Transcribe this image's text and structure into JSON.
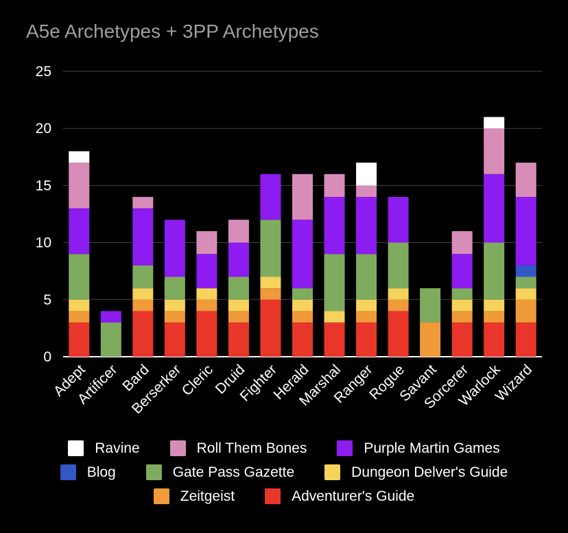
{
  "chart_data": {
    "type": "bar",
    "stacked": true,
    "title": "A5e Archetypes + 3PP Archetypes",
    "xlabel": "",
    "ylabel": "",
    "ylim": [
      0,
      25
    ],
    "yticks": [
      0,
      5,
      10,
      15,
      20,
      25
    ],
    "grid": true,
    "legend_position": "bottom",
    "categories": [
      "Adept",
      "Artificer",
      "Bard",
      "Berserker",
      "Cleric",
      "Druid",
      "Fighter",
      "Herald",
      "Marshal",
      "Ranger",
      "Rogue",
      "Savant",
      "Sorcerer",
      "Warlock",
      "Wizard"
    ],
    "series": [
      {
        "name": "Adventurer's Guide",
        "color": "#e8372a",
        "values": [
          3,
          0,
          4,
          3,
          4,
          3,
          5,
          3,
          3,
          3,
          4,
          0,
          3,
          3,
          3
        ]
      },
      {
        "name": "Zeitgeist",
        "color": "#f09a3a",
        "values": [
          1,
          0,
          1,
          1,
          1,
          1,
          1,
          1,
          0,
          1,
          1,
          3,
          1,
          1,
          2
        ]
      },
      {
        "name": "Dungeon Delver's Guide",
        "color": "#f6d35b",
        "values": [
          1,
          0,
          1,
          1,
          1,
          1,
          1,
          1,
          1,
          1,
          1,
          0,
          1,
          1,
          1
        ]
      },
      {
        "name": "Gate Pass Gazette",
        "color": "#7fab5f",
        "values": [
          4,
          3,
          2,
          2,
          0,
          2,
          5,
          1,
          5,
          4,
          4,
          3,
          1,
          5,
          1
        ]
      },
      {
        "name": "Blog",
        "color": "#3457c7",
        "values": [
          0,
          0,
          0,
          0,
          0,
          0,
          0,
          0,
          0,
          0,
          0,
          0,
          0,
          0,
          1
        ]
      },
      {
        "name": "Purple Martin Games",
        "color": "#8c1cf0",
        "values": [
          4,
          1,
          5,
          5,
          3,
          3,
          4,
          6,
          5,
          5,
          4,
          0,
          3,
          6,
          6
        ]
      },
      {
        "name": "Roll Them Bones",
        "color": "#d88db8",
        "values": [
          4,
          0,
          1,
          0,
          2,
          2,
          0,
          4,
          2,
          1,
          0,
          0,
          2,
          4,
          3
        ]
      },
      {
        "name": "Ravine",
        "color": "#ffffff",
        "values": [
          1,
          0,
          0,
          0,
          0,
          0,
          0,
          0,
          0,
          2,
          0,
          0,
          0,
          1,
          0
        ]
      }
    ],
    "legend_rows": [
      [
        "Ravine",
        "Roll Them Bones",
        "Purple Martin Games"
      ],
      [
        "Blog",
        "Gate Pass Gazette",
        "Dungeon Delver's Guide"
      ],
      [
        "Zeitgeist",
        "Adventurer's Guide"
      ]
    ]
  }
}
